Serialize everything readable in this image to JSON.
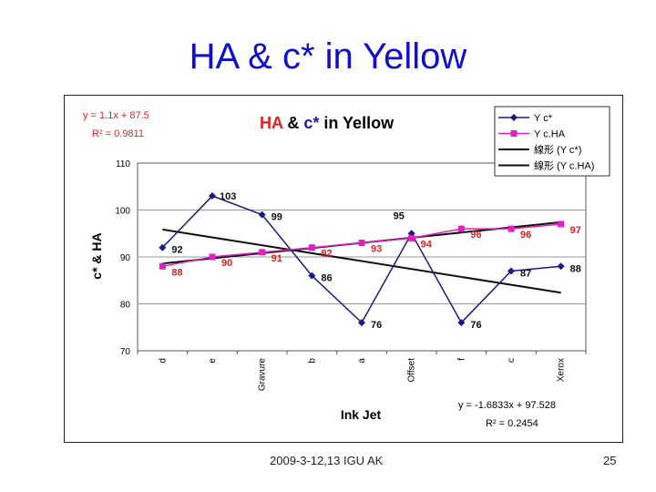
{
  "slide": {
    "title": "HA & c* in Yellow",
    "footer_left": "2009-3-12,13 IGU AK",
    "page_number": "25"
  },
  "chart_data": {
    "type": "line",
    "title_parts": [
      {
        "text": "HA",
        "color": "#e02020"
      },
      {
        "text": " & ",
        "color": "#000000"
      },
      {
        "text": "c*",
        "color": "#1a1aa8"
      },
      {
        "text": " in Yellow",
        "color": "#000000"
      }
    ],
    "xlabel": "Ink Jet",
    "ylabel": "c* & HA",
    "ylim": [
      70,
      110
    ],
    "yticks": [
      70,
      80,
      90,
      100,
      110
    ],
    "grid": "horizontal",
    "legend_position": "top-right",
    "categories": [
      "d",
      "e",
      "Gravure",
      "b",
      "a",
      "Offset",
      "f",
      "c",
      "Xerox"
    ],
    "series": [
      {
        "name": "Y c*",
        "color": "#1a1a80",
        "marker": "diamond",
        "values": [
          92,
          103,
          99,
          86,
          76,
          95,
          76,
          87,
          88
        ],
        "label_color": "#111111"
      },
      {
        "name": "Y c.HA",
        "color": "#e020c0",
        "marker": "square",
        "values": [
          88,
          90,
          91,
          92,
          93,
          94,
          96,
          96,
          97
        ],
        "label_color": "#e02020"
      }
    ],
    "trendlines": [
      {
        "name": "線形 (Y c*)",
        "slope": -1.6833,
        "intercept": 97.528,
        "equation": "y = -1.6833x + 97.528",
        "r2": "R² = 0.2454",
        "color": "#111111"
      },
      {
        "name": "線形 (Y c.HA)",
        "slope": 1.1,
        "intercept": 87.5,
        "equation": "y = 1.1x + 87.5",
        "r2": "R² = 0.9811",
        "color": "#111111"
      }
    ]
  }
}
